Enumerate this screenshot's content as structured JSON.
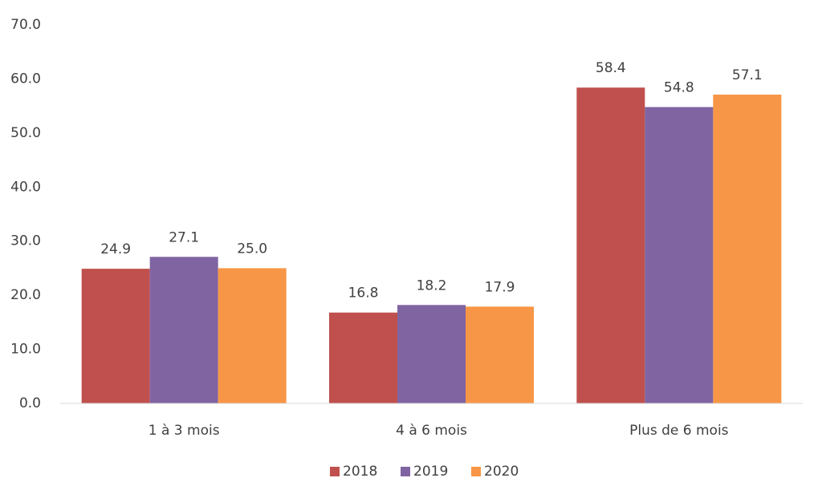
{
  "chart_data": {
    "type": "bar",
    "categories": [
      "1 à 3 mois",
      "4 à 6 mois",
      "Plus de 6 mois"
    ],
    "series": [
      {
        "name": "2018",
        "color": "#c0504d",
        "values": [
          24.9,
          16.8,
          58.4
        ],
        "value_labels": [
          "24.9",
          "16.8",
          "58.4"
        ]
      },
      {
        "name": "2019",
        "color": "#8064a2",
        "values": [
          27.1,
          18.2,
          54.8
        ],
        "value_labels": [
          "27.1",
          "18.2",
          "54.8"
        ]
      },
      {
        "name": "2020",
        "color": "#f79646",
        "values": [
          25.0,
          17.9,
          57.1
        ],
        "value_labels": [
          "25.0",
          "17.9",
          "57.1"
        ]
      }
    ],
    "ylim": [
      0,
      70
    ],
    "yticks": [
      {
        "value": 0,
        "label": "0.0"
      },
      {
        "value": 10,
        "label": "10.0"
      },
      {
        "value": 20,
        "label": "20.0"
      },
      {
        "value": 30,
        "label": "30.0"
      },
      {
        "value": 40,
        "label": "40.0"
      },
      {
        "value": 50,
        "label": "50.0"
      },
      {
        "value": 60,
        "label": "60.0"
      },
      {
        "value": 70,
        "label": "70.0"
      }
    ],
    "grid": false,
    "legend": "bottom"
  }
}
